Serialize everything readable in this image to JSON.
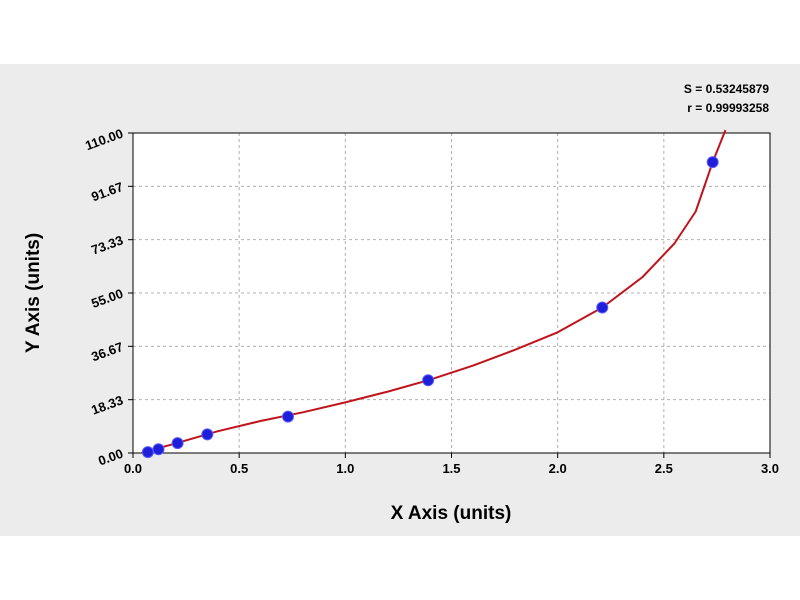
{
  "chart_data": {
    "type": "scatter",
    "xlabel": "X Axis (units)",
    "ylabel": "Y Axis (units)",
    "xlim": [
      0,
      3.0
    ],
    "ylim": [
      0,
      110.0
    ],
    "x_ticks": [
      0.0,
      0.5,
      1.0,
      1.5,
      2.0,
      2.5,
      3.0
    ],
    "x_tick_labels": [
      "0.0",
      "0.5",
      "1.0",
      "1.5",
      "2.0",
      "2.5",
      "3.0"
    ],
    "y_ticks": [
      0,
      18.33,
      36.67,
      55.0,
      73.33,
      91.67,
      110.0
    ],
    "y_tick_labels": [
      "0.00",
      "18.33",
      "36.67",
      "55.00",
      "73.33",
      "91.67",
      "110.00"
    ],
    "grid": true,
    "annotations": {
      "s_line": "S = 0.53245879",
      "r_line": "r = 0.99993258"
    },
    "series": [
      {
        "type": "scatter",
        "x": [
          0.07,
          0.12,
          0.21,
          0.35,
          0.73,
          1.39,
          2.21,
          2.73
        ],
        "y": [
          0.3,
          1.3,
          3.4,
          6.4,
          12.5,
          25.0,
          50.0,
          100.0
        ],
        "color": "#1f1fd8"
      },
      {
        "type": "line",
        "x": [
          0.04,
          0.2,
          0.4,
          0.6,
          0.8,
          1.0,
          1.2,
          1.39,
          1.6,
          1.8,
          2.0,
          2.21,
          2.4,
          2.55,
          2.65,
          2.73,
          2.79
        ],
        "y": [
          0.0,
          3.3,
          7.5,
          11.0,
          14.0,
          17.4,
          21.1,
          25.0,
          30.0,
          35.5,
          41.5,
          50.0,
          60.5,
          72.0,
          83.0,
          100.0,
          111.0
        ],
        "color": "#c0141c"
      }
    ],
    "colors": {
      "panel_background": "#ececec",
      "plot_background": "#ffffff",
      "grid": "#b0b0b0",
      "marker": "#1f1fd8",
      "curve": "#c0141c"
    }
  }
}
